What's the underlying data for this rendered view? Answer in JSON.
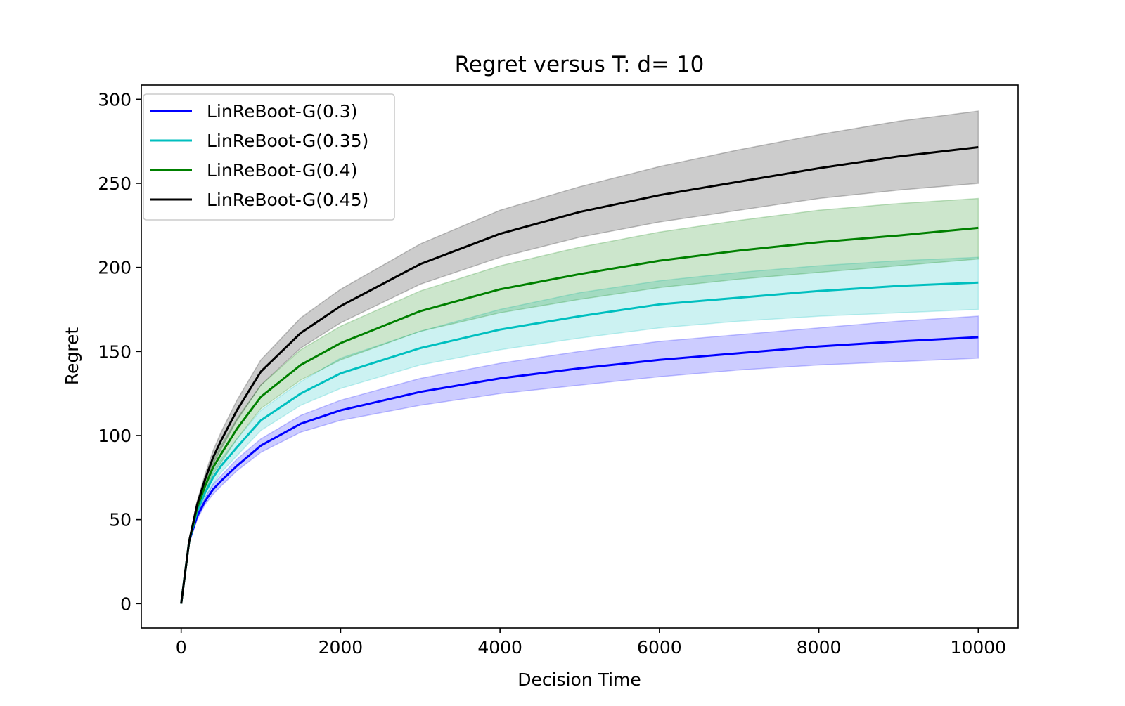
{
  "chart_data": {
    "type": "line",
    "title": "Regret versus T: d= 10",
    "xlabel": "Decision Time",
    "ylabel": "Regret",
    "xlim": [
      -500,
      10500
    ],
    "ylim": [
      -14.5,
      308.5
    ],
    "xticks": [
      0,
      2000,
      4000,
      6000,
      8000,
      10000
    ],
    "yticks": [
      0,
      50,
      100,
      150,
      200,
      250,
      300
    ],
    "xtick_labels": [
      "0",
      "2000",
      "4000",
      "6000",
      "8000",
      "10000"
    ],
    "ytick_labels": [
      "0",
      "50",
      "100",
      "150",
      "200",
      "250",
      "300"
    ],
    "grid": false,
    "legend_position": "top-left",
    "x": [
      0,
      100,
      200,
      300,
      400,
      500,
      700,
      1000,
      1500,
      2000,
      3000,
      4000,
      5000,
      6000,
      7000,
      8000,
      9000,
      10000
    ],
    "series": [
      {
        "name": "LinReBoot-G(0.3)",
        "color": "#0000ff",
        "fill_color": "#0000ff",
        "values": [
          0,
          37,
          52,
          61,
          68,
          73,
          82,
          94,
          107,
          115,
          126,
          134,
          140,
          145,
          149,
          153,
          156,
          158.5
        ],
        "lower": [
          0,
          36,
          50,
          59,
          65,
          70,
          79,
          90,
          102,
          109,
          118,
          125,
          130,
          135,
          139,
          142,
          144,
          146
        ],
        "upper": [
          0,
          38,
          54,
          63,
          71,
          76,
          86,
          98,
          112,
          121,
          134,
          143,
          150,
          156,
          160,
          164,
          168,
          171
        ]
      },
      {
        "name": "LinReBoot-G(0.35)",
        "color": "#00bfbf",
        "fill_color": "#00bfbf",
        "values": [
          0,
          37,
          55,
          66,
          75,
          82,
          93,
          109,
          125,
          137,
          152,
          163,
          171,
          178,
          182,
          186,
          189,
          191
        ],
        "lower": [
          0,
          36,
          53,
          63,
          71,
          78,
          88,
          103,
          118,
          128,
          142,
          151,
          158,
          164,
          168,
          171,
          173,
          175
        ],
        "upper": [
          0,
          38,
          57,
          69,
          79,
          86,
          98,
          115,
          132,
          146,
          162,
          175,
          185,
          192,
          197,
          201,
          204,
          206
        ]
      },
      {
        "name": "LinReBoot-G(0.4)",
        "color": "#008000",
        "fill_color": "#008000",
        "values": [
          0,
          37,
          57,
          70,
          81,
          89,
          104,
          123,
          142,
          155,
          174,
          187,
          196,
          204,
          210,
          215,
          219,
          223.5
        ],
        "lower": [
          0,
          36,
          55,
          67,
          77,
          84,
          98,
          116,
          133,
          145,
          162,
          173,
          181,
          188,
          193,
          197,
          201,
          205
        ],
        "upper": [
          0,
          38,
          59,
          73,
          85,
          94,
          110,
          130,
          151,
          165,
          186,
          201,
          212,
          221,
          228,
          234,
          238,
          241
        ]
      },
      {
        "name": "LinReBoot-G(0.45)",
        "color": "#000000",
        "fill_color": "#000000",
        "values": [
          0,
          37,
          59,
          74,
          87,
          97,
          115,
          138,
          161,
          177,
          202,
          220,
          233,
          243,
          251,
          259,
          266,
          271.5
        ],
        "lower": [
          0,
          36,
          57,
          71,
          83,
          92,
          109,
          130,
          152,
          167,
          190,
          206,
          218,
          227,
          234,
          241,
          246,
          250
        ],
        "upper": [
          0,
          38,
          61,
          77,
          91,
          102,
          121,
          145,
          170,
          187,
          214,
          234,
          248,
          260,
          270,
          279,
          287,
          293
        ]
      }
    ]
  }
}
